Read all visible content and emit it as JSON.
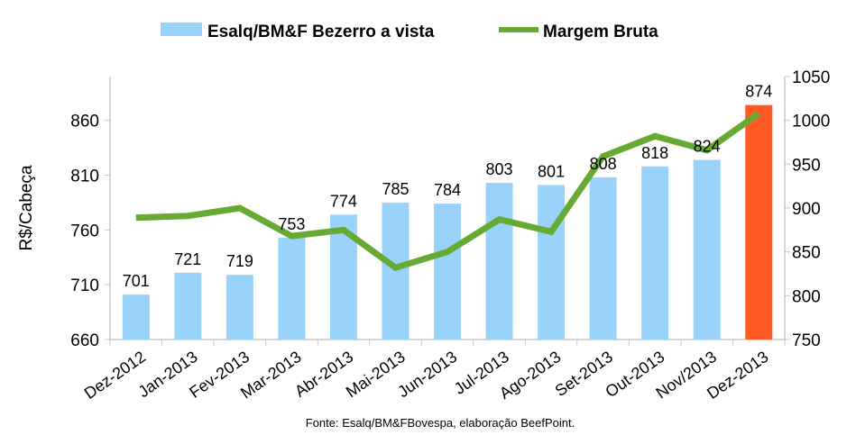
{
  "chart_data": {
    "type": "bar+line",
    "categories": [
      "Dez-2012",
      "Jan-2013",
      "Fev-2013",
      "Mar-2013",
      "Abr-2013",
      "Mai-2013",
      "Jun-2013",
      "Jul-2013",
      "Ago-2013",
      "Set-2013",
      "Out-2013",
      "Nov/2013",
      "Dez-2013"
    ],
    "series": [
      {
        "name": "Esalq/BM&F Bezerro a vista",
        "type": "bar",
        "axis": "left",
        "values": [
          701,
          721,
          719,
          753,
          774,
          785,
          784,
          803,
          801,
          808,
          818,
          824,
          874
        ],
        "color": "#99d3fb",
        "highlight_color": "#ff5a23",
        "highlight_index": 12
      },
      {
        "name": "Margem Bruta",
        "type": "line",
        "axis": "right",
        "values": [
          889,
          891,
          900,
          868,
          875,
          832,
          850,
          887,
          873,
          959,
          982,
          966,
          1008
        ],
        "color": "#66aa33"
      }
    ],
    "ylabel": "R$/Cabeça",
    "ylim": [
      660,
      900
    ],
    "yticks": [
      660,
      710,
      760,
      810,
      860
    ],
    "y2lim": [
      750,
      1050
    ],
    "y2ticks": [
      750,
      800,
      850,
      900,
      950,
      1000,
      1050
    ],
    "legend": "top",
    "grid": false,
    "source": "Fonte:  Esalq/BM&FBovespa,  elaboração  BeefPoint."
  }
}
